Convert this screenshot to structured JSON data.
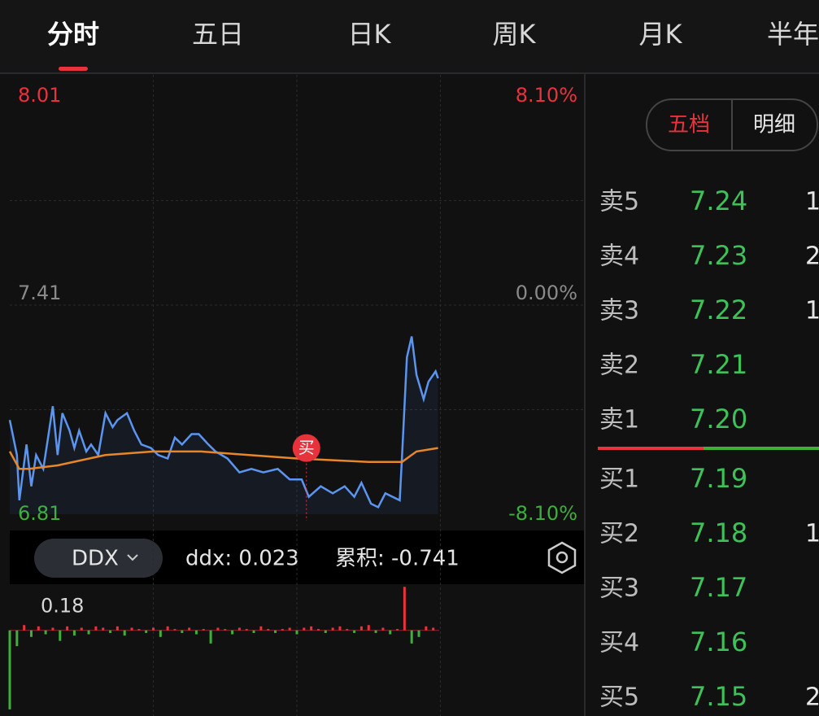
{
  "tabs": [
    "分时",
    "五日",
    "日K",
    "周K",
    "月K",
    "半年"
  ],
  "active_tab": 0,
  "chart_data": [
    {
      "type": "line",
      "xlim": [
        0,
        240
      ],
      "xgrid": [
        60,
        120,
        180
      ],
      "ylim": [
        6.81,
        8.01
      ],
      "yticks": [
        6.81,
        7.41,
        8.01
      ],
      "ygrid": [
        7.11,
        7.71
      ],
      "y2lim": [
        -8.1,
        8.1
      ],
      "y2ticks": [
        {
          "value": -8.1,
          "label": "-8.10%"
        },
        {
          "value": 0,
          "label": "0.00%"
        },
        {
          "value": 8.1,
          "label": "8.10%"
        }
      ],
      "series": [
        {
          "color": "#5b95f0",
          "x": [
            0,
            3,
            4,
            7,
            9,
            11,
            14,
            16,
            18,
            20,
            22,
            25,
            27,
            29,
            32,
            34,
            37,
            40,
            43,
            45,
            49,
            52,
            55,
            59,
            62,
            66,
            69,
            72,
            76,
            79,
            83,
            86,
            91,
            96,
            101,
            106,
            112,
            117,
            122,
            125,
            130,
            135,
            140,
            144,
            147,
            151,
            154,
            157,
            163,
            164,
            166,
            168,
            170,
            173,
            175,
            178,
            179
          ],
          "values": [
            7.08,
            6.98,
            6.85,
            7.01,
            6.89,
            6.98,
            6.94,
            7.03,
            7.12,
            6.98,
            7.1,
            7.05,
            7.0,
            7.05,
            6.99,
            7.01,
            6.98,
            7.1,
            7.06,
            7.08,
            7.1,
            7.05,
            7.01,
            7.0,
            6.98,
            6.97,
            7.03,
            7.01,
            7.04,
            7.04,
            7.01,
            6.99,
            6.97,
            6.93,
            6.94,
            6.93,
            6.94,
            6.91,
            6.91,
            6.86,
            6.89,
            6.87,
            6.89,
            6.86,
            6.9,
            6.84,
            6.83,
            6.87,
            6.85,
            6.98,
            7.26,
            7.32,
            7.21,
            7.14,
            7.19,
            7.22,
            7.2
          ]
        },
        {
          "color": "#e8862a",
          "x": [
            0,
            4,
            8,
            20,
            40,
            60,
            80,
            100,
            120,
            150,
            164,
            170,
            179
          ],
          "values": [
            6.99,
            6.94,
            6.94,
            6.95,
            6.98,
            6.99,
            6.99,
            6.98,
            6.97,
            6.96,
            6.96,
            6.99,
            7.0
          ]
        }
      ],
      "marker": {
        "label": "买",
        "x": 124,
        "y": 7.0,
        "color": "#e8323c"
      }
    },
    {
      "type": "bar",
      "selector": "DDX",
      "readouts": [
        "ddx: 0.023",
        "累积: -0.741"
      ],
      "up_color": "#e8323c",
      "down_color": "#3fae3a",
      "xlim": [
        0,
        240
      ],
      "ylim": [
        -0.65,
        0.35
      ],
      "yticks": [
        0.18
      ],
      "x": [
        0,
        3,
        6,
        9,
        12,
        15,
        18,
        21,
        24,
        27,
        30,
        33,
        36,
        39,
        42,
        45,
        48,
        51,
        54,
        57,
        60,
        63,
        66,
        69,
        72,
        75,
        78,
        81,
        84,
        87,
        90,
        93,
        96,
        99,
        102,
        105,
        108,
        111,
        114,
        117,
        120,
        123,
        126,
        129,
        132,
        135,
        138,
        141,
        144,
        147,
        150,
        153,
        156,
        159,
        162,
        165,
        168,
        171,
        174,
        177
      ],
      "values": [
        -0.6,
        -0.12,
        0.04,
        -0.05,
        0.03,
        -0.03,
        0.02,
        -0.08,
        0.03,
        -0.04,
        0.02,
        -0.03,
        0.03,
        0.02,
        -0.02,
        0.03,
        -0.04,
        0.02,
        0.01,
        -0.02,
        0.02,
        -0.05,
        0.03,
        0.01,
        -0.02,
        0.02,
        -0.03,
        0.01,
        -0.1,
        0.02,
        0.01,
        -0.03,
        0.02,
        0.01,
        -0.02,
        0.03,
        0.01,
        -0.02,
        0.01,
        0.02,
        -0.03,
        0.02,
        0.03,
        0.01,
        -0.02,
        0.02,
        0.03,
        0.01,
        -0.02,
        0.03,
        0.04,
        -0.02,
        0.02,
        -0.03,
        0.01,
        0.33,
        -0.1,
        -0.05,
        0.03,
        0.02
      ]
    }
  ],
  "order_book": {
    "toggle": [
      "五档",
      "明细"
    ],
    "asks": [
      {
        "label": "卖5",
        "price": "7.24",
        "volume": "1"
      },
      {
        "label": "卖4",
        "price": "7.23",
        "volume": "2"
      },
      {
        "label": "卖3",
        "price": "7.22",
        "volume": "1"
      },
      {
        "label": "卖2",
        "price": "7.21"
      },
      {
        "label": "卖1",
        "price": "7.20"
      }
    ],
    "bids": [
      {
        "label": "买1",
        "price": "7.19"
      },
      {
        "label": "买2",
        "price": "7.18",
        "volume": "1"
      },
      {
        "label": "买3",
        "price": "7.17"
      },
      {
        "label": "买4",
        "price": "7.16"
      },
      {
        "label": "买5",
        "price": "7.15",
        "volume": "2"
      }
    ]
  }
}
